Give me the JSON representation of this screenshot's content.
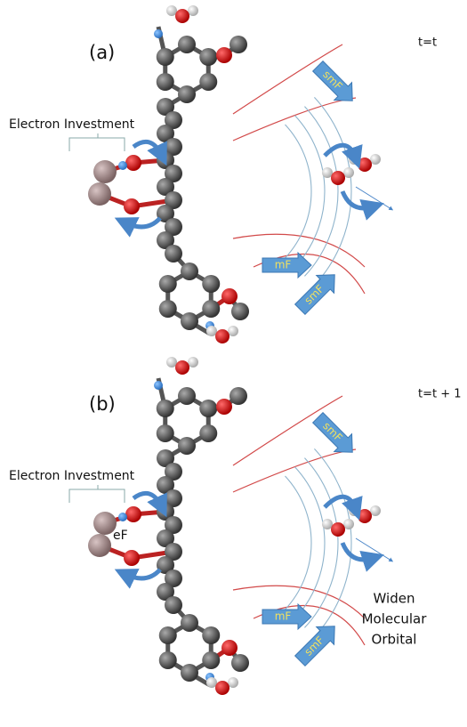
{
  "panels": [
    {
      "label": "(a)",
      "time": "t=t",
      "investment": "Electron Investment",
      "arrows": [
        "smF",
        "mF",
        "smF"
      ]
    },
    {
      "label": "(b)",
      "time": "t=t + 1",
      "investment": "Electron Investment",
      "field": "eF",
      "arrows": [
        "smF",
        "mF",
        "smF"
      ],
      "note": [
        "Widen",
        "Molecular",
        "Orbital"
      ]
    }
  ]
}
